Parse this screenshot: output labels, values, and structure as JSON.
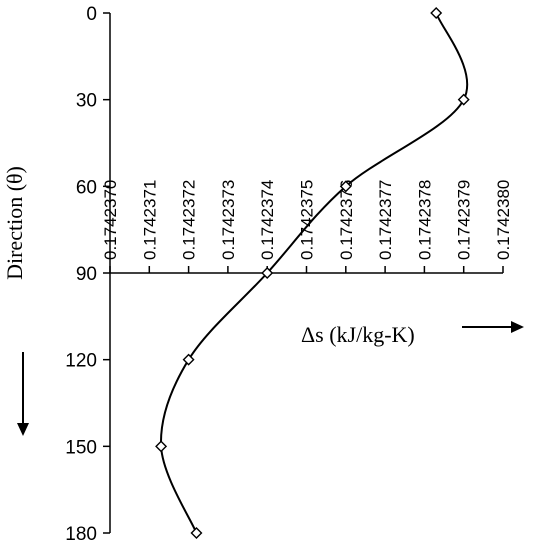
{
  "chart_data": {
    "type": "line",
    "title": "",
    "xlabel": "Δs (kJ/kg-K)",
    "ylabel": "Direction (θ)",
    "xlim": [
      0.174237,
      0.174238
    ],
    "ylim": [
      0,
      180
    ],
    "y_inverted": true,
    "x_axis_crosses_y_at": 90,
    "x_ticks": [
      "0.1742370",
      "0.1742371",
      "0.1742372",
      "0.1742373",
      "0.1742374",
      "0.1742375",
      "0.1742376",
      "0.1742377",
      "0.1742378",
      "0.1742379",
      "0.1742380"
    ],
    "y_ticks": [
      "0",
      "30",
      "60",
      "90",
      "120",
      "150",
      "180"
    ],
    "series": [
      {
        "marker": "diamond-open",
        "smooth": true,
        "x": [
          0.17423783,
          0.1742379,
          0.1742376,
          0.1742374,
          0.1742372,
          0.17423713,
          0.17423722
        ],
        "y": [
          0,
          30,
          60,
          90,
          120,
          150,
          180
        ]
      }
    ],
    "annotations": {
      "x_arrow": "right",
      "y_arrow": "down"
    },
    "grid": false,
    "legend": "none"
  }
}
